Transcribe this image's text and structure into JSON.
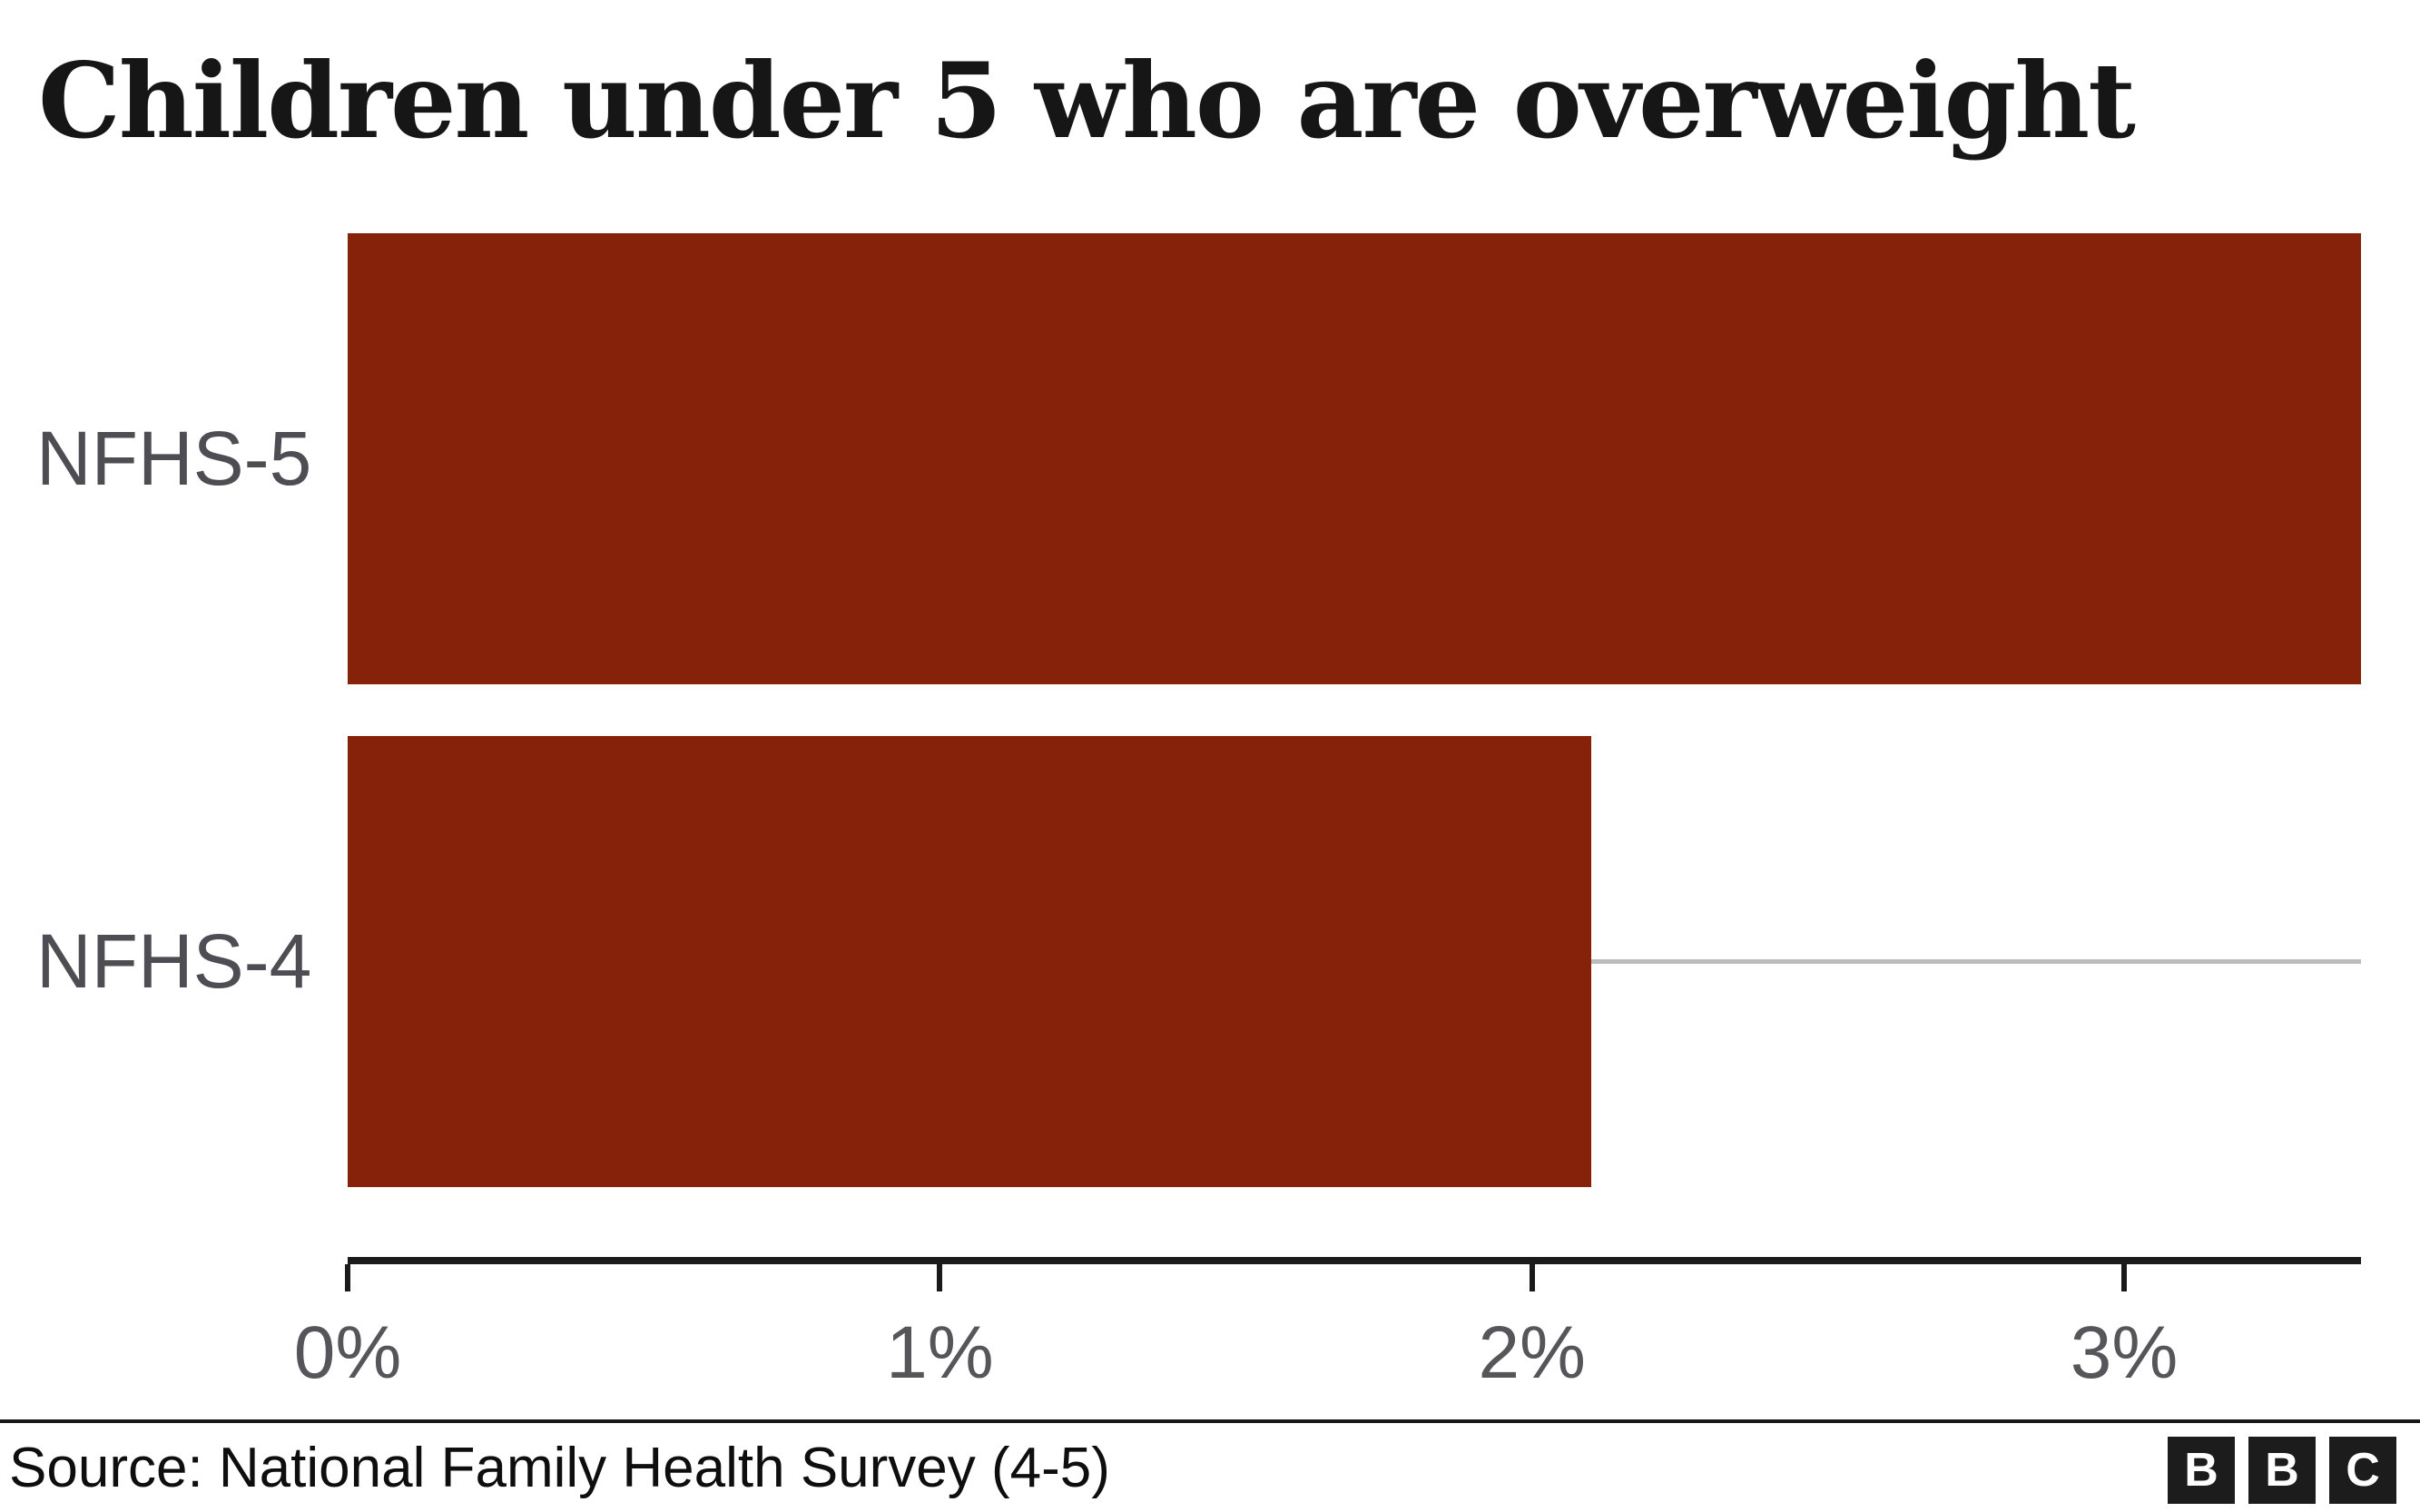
{
  "chart_data": {
    "type": "bar",
    "orientation": "horizontal",
    "title": "Children under 5 who are overweight",
    "categories": [
      "NFHS-5",
      "NFHS-4"
    ],
    "values": [
      3.4,
      2.1
    ],
    "value_unit": "%",
    "xlabel": "",
    "ylabel": "",
    "xlim": [
      0,
      3.4
    ],
    "x_ticks": [
      {
        "value": 0,
        "label": "0%"
      },
      {
        "value": 1,
        "label": "1%"
      },
      {
        "value": 2,
        "label": "2%"
      },
      {
        "value": 3,
        "label": "3%"
      }
    ],
    "grid": false,
    "legend": false,
    "bar_color": "#862209",
    "track_color": "#bcbcbc",
    "axis_color": "#1a1a1a",
    "label_color": "#4d4d53",
    "tick_label_color": "#55555a"
  },
  "footer": {
    "source": "Source: National Family Health Survey (4-5)",
    "logo": {
      "letters": [
        "B",
        "B",
        "C"
      ]
    }
  }
}
